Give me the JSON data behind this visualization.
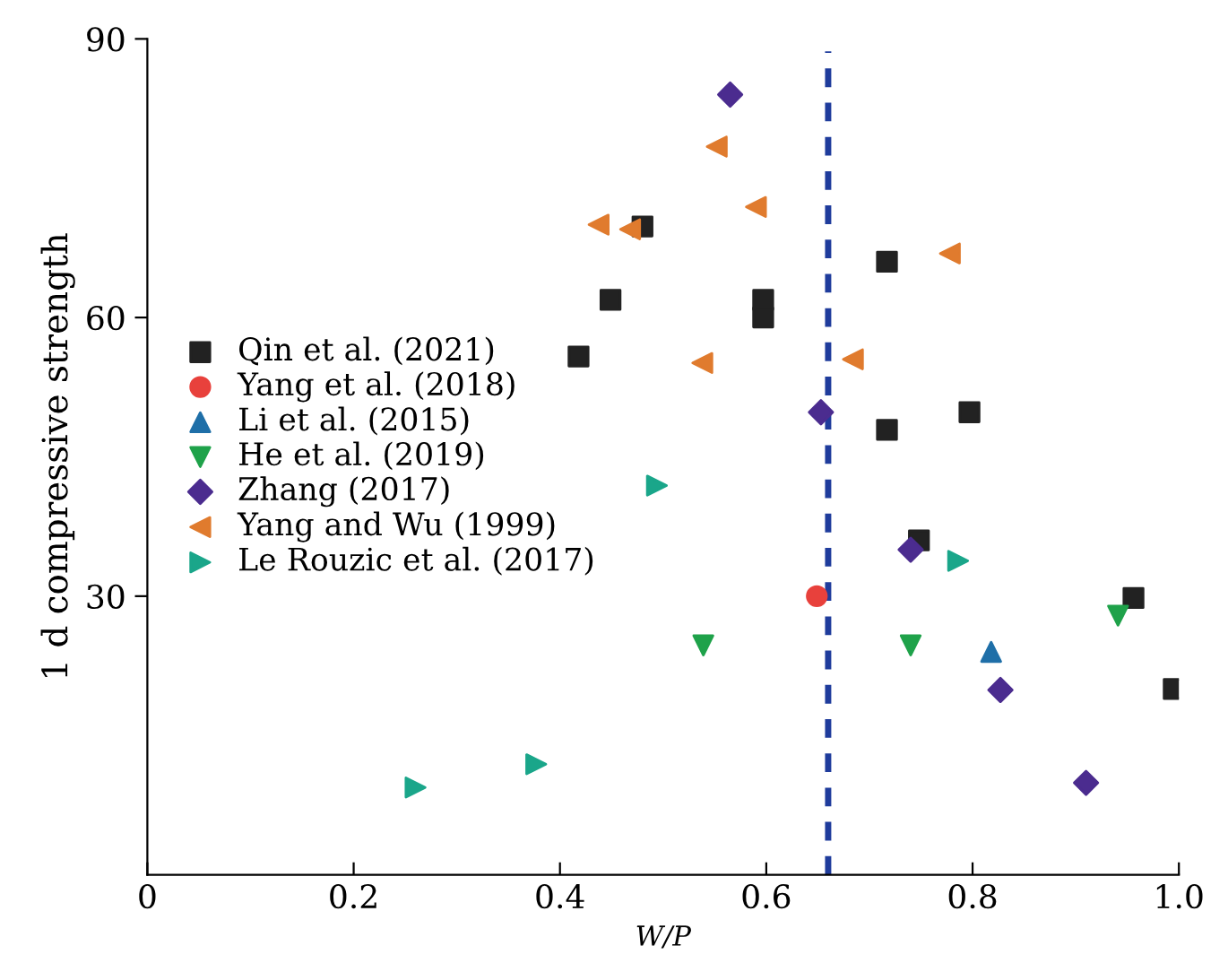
{
  "chart_data": {
    "type": "scatter",
    "xlabel": "W/P",
    "ylabel": "1 d compressive strength",
    "xlim": [
      0,
      1
    ],
    "ylim": [
      0,
      90
    ],
    "xticks": [
      0,
      0.2,
      0.4,
      0.6,
      0.8,
      {
        "value": 1,
        "label": "1.0"
      }
    ],
    "yticks": [
      30,
      60,
      90
    ],
    "grid": false,
    "legend": "left",
    "ref_lines": [
      {
        "axis": "x",
        "value": 0.66,
        "color": "#1f3c9c",
        "line_style": "dashed"
      }
    ],
    "series": [
      {
        "name": "Qin et al. (2021)",
        "color": "#222222",
        "marker": "square",
        "x": [
          0.418,
          0.449,
          0.48,
          0.597,
          0.597,
          0.717,
          0.717,
          0.797,
          0.748,
          0.956,
          0.995
        ],
        "values": [
          55.8,
          61.9,
          69.8,
          61.9,
          60.0,
          66,
          47.9,
          49.8,
          36,
          29.8,
          20
        ]
      },
      {
        "name": "Yang et al. (2018)",
        "color": "#e8413c",
        "marker": "circle",
        "x": [
          0.649
        ],
        "values": [
          30
        ]
      },
      {
        "name": "Li et al. (2015)",
        "color": "#1f6fa8",
        "marker": "triangle",
        "x": [
          0.818
        ],
        "values": [
          24
        ]
      },
      {
        "name": "He et al. (2019)",
        "color": "#1fa24a",
        "marker": "triangle_down",
        "x": [
          0.539,
          0.74,
          0.941
        ],
        "values": [
          24.7,
          24.7,
          27.9
        ]
      },
      {
        "name": "Zhang (2017)",
        "color": "#4b2c8f",
        "marker": "diamond",
        "x": [
          0.565,
          0.653,
          0.74,
          0.827,
          0.91
        ],
        "values": [
          84,
          49.8,
          35,
          19.9,
          9.9
        ]
      },
      {
        "name": "Yang and Wu (1999)",
        "color": "#e07b2e",
        "marker": "triangle_left",
        "x": [
          0.4375,
          0.468,
          0.552,
          0.59,
          0.538,
          0.684,
          0.778
        ],
        "values": [
          70,
          69.5,
          78.4,
          71.9,
          55.1,
          55.5,
          66.9
        ]
      },
      {
        "name": "Le Rouzic et al. (2017)",
        "color": "#1aa68a",
        "marker": "triangle_right",
        "x": [
          0.26,
          0.377,
          0.494,
          0.786
        ],
        "values": [
          9.4,
          11.9,
          41.9,
          33.8
        ]
      }
    ]
  }
}
